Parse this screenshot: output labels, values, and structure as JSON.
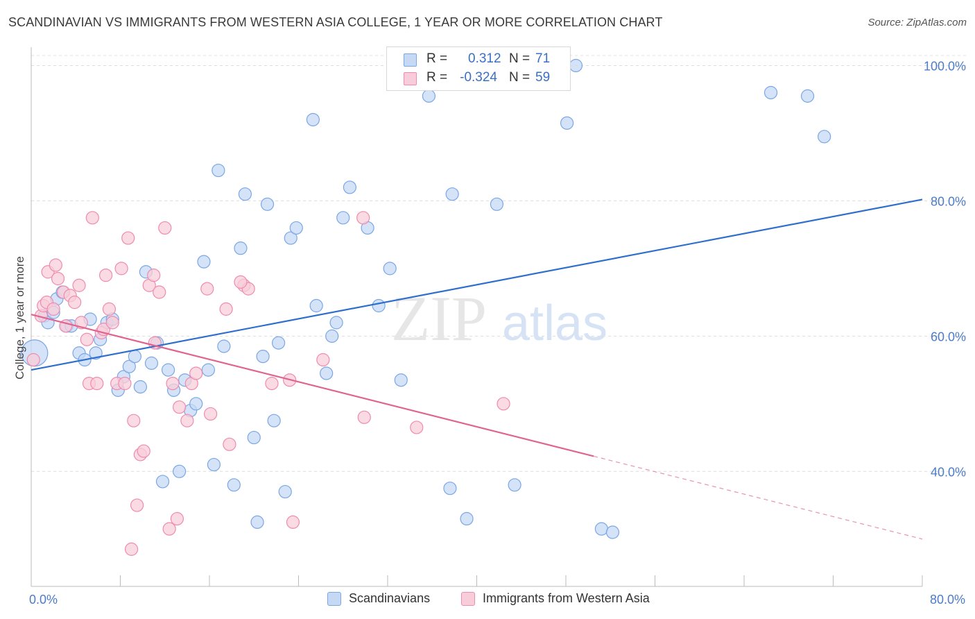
{
  "header": {
    "title": "SCANDINAVIAN VS IMMIGRANTS FROM WESTERN ASIA COLLEGE, 1 YEAR OR MORE CORRELATION CHART",
    "source": "Source: ZipAtlas.com"
  },
  "legend": {
    "r_label": "R =",
    "n_label": "N =",
    "rows": [
      {
        "r": "0.312",
        "n": "71"
      },
      {
        "r": "-0.324",
        "n": "59"
      }
    ]
  },
  "watermark": {
    "zip": "ZIP",
    "atlas": "atlas"
  },
  "chart_data": {
    "type": "scatter",
    "ylabel": "College, 1 year or more",
    "xlabel": "",
    "xlim": [
      0,
      80
    ],
    "ylim": [
      23,
      102
    ],
    "x_tick_labels": [
      {
        "value": 0,
        "label": "0.0%"
      },
      {
        "value": 80,
        "label": "80.0%"
      }
    ],
    "x_minor_ticks": [
      8,
      16,
      24,
      32,
      40,
      48,
      56,
      64,
      72
    ],
    "y_ticks": [
      {
        "value": 40,
        "label": "40.0%"
      },
      {
        "value": 60,
        "label": "60.0%"
      },
      {
        "value": 80,
        "label": "80.0%"
      },
      {
        "value": 100,
        "label": "100.0%"
      }
    ],
    "grid": "horizontal dashed",
    "legend_position": "top-center",
    "series": [
      {
        "name": "Scandinavians",
        "color": "#7aa6e6",
        "fill": "#c5d9f5",
        "line_color": "#2e6fce",
        "trend": {
          "x": [
            0,
            80
          ],
          "y": [
            55.0,
            80.2
          ],
          "dashed_from": null
        },
        "points": [
          [
            0.3,
            57.5
          ],
          [
            1.2,
            63.0
          ],
          [
            1.5,
            62.0
          ],
          [
            2.0,
            63.5
          ],
          [
            2.3,
            65.5
          ],
          [
            2.8,
            66.5
          ],
          [
            3.2,
            61.5
          ],
          [
            3.6,
            61.5
          ],
          [
            4.3,
            57.5
          ],
          [
            4.8,
            56.5
          ],
          [
            5.3,
            62.5
          ],
          [
            5.8,
            57.5
          ],
          [
            6.2,
            59.5
          ],
          [
            6.8,
            62.0
          ],
          [
            7.3,
            62.5
          ],
          [
            7.8,
            52.0
          ],
          [
            8.3,
            54.0
          ],
          [
            8.8,
            55.5
          ],
          [
            9.3,
            57.0
          ],
          [
            9.8,
            52.5
          ],
          [
            10.3,
            69.5
          ],
          [
            10.8,
            56.0
          ],
          [
            11.3,
            59.0
          ],
          [
            11.8,
            38.5
          ],
          [
            12.3,
            55.0
          ],
          [
            12.8,
            52.0
          ],
          [
            13.3,
            40.0
          ],
          [
            13.8,
            53.5
          ],
          [
            14.3,
            49.0
          ],
          [
            14.8,
            50.0
          ],
          [
            15.5,
            71.0
          ],
          [
            15.9,
            55.0
          ],
          [
            16.4,
            41.0
          ],
          [
            16.8,
            84.5
          ],
          [
            17.3,
            58.5
          ],
          [
            18.2,
            38.0
          ],
          [
            18.8,
            73.0
          ],
          [
            19.2,
            81.0
          ],
          [
            20.0,
            45.0
          ],
          [
            20.3,
            32.5
          ],
          [
            20.8,
            57.0
          ],
          [
            21.2,
            79.5
          ],
          [
            21.8,
            47.5
          ],
          [
            22.2,
            59.0
          ],
          [
            22.8,
            37.0
          ],
          [
            23.3,
            74.5
          ],
          [
            23.8,
            76.0
          ],
          [
            25.6,
            64.5
          ],
          [
            25.3,
            92.0
          ],
          [
            26.5,
            54.5
          ],
          [
            27.0,
            60.0
          ],
          [
            27.4,
            62.0
          ],
          [
            28.0,
            77.5
          ],
          [
            28.6,
            82.0
          ],
          [
            30.2,
            76.0
          ],
          [
            31.2,
            64.5
          ],
          [
            32.2,
            70.0
          ],
          [
            33.2,
            53.5
          ],
          [
            35.7,
            95.5
          ],
          [
            37.8,
            81.0
          ],
          [
            37.6,
            37.5
          ],
          [
            39.1,
            33.0
          ],
          [
            41.8,
            79.5
          ],
          [
            43.4,
            38.0
          ],
          [
            48.9,
            100.0
          ],
          [
            48.1,
            91.5
          ],
          [
            51.2,
            31.5
          ],
          [
            52.2,
            31.0
          ],
          [
            66.4,
            96.0
          ],
          [
            69.7,
            95.5
          ],
          [
            71.2,
            89.5
          ]
        ],
        "large_point_index": 0
      },
      {
        "name": "Immigrants from Western Asia",
        "color": "#f08aae",
        "fill": "#f8cdd9",
        "line_color": "#e0648f",
        "trend": {
          "x": [
            0,
            80
          ],
          "y": [
            63.2,
            30.0
          ],
          "dashed_from": 50.5
        },
        "points": [
          [
            0.2,
            56.5
          ],
          [
            0.9,
            63.0
          ],
          [
            1.1,
            64.5
          ],
          [
            1.4,
            65.0
          ],
          [
            1.5,
            69.5
          ],
          [
            2.0,
            64.0
          ],
          [
            2.2,
            70.5
          ],
          [
            2.4,
            68.5
          ],
          [
            2.9,
            66.5
          ],
          [
            3.1,
            61.5
          ],
          [
            3.5,
            66.0
          ],
          [
            3.9,
            65.0
          ],
          [
            4.3,
            67.5
          ],
          [
            4.5,
            62.0
          ],
          [
            5.0,
            59.5
          ],
          [
            5.2,
            53.0
          ],
          [
            5.5,
            77.5
          ],
          [
            5.9,
            53.0
          ],
          [
            6.3,
            60.5
          ],
          [
            6.5,
            61.0
          ],
          [
            6.7,
            69.0
          ],
          [
            7.0,
            64.0
          ],
          [
            7.3,
            62.0
          ],
          [
            7.7,
            53.0
          ],
          [
            8.1,
            70.0
          ],
          [
            8.4,
            53.0
          ],
          [
            8.7,
            74.5
          ],
          [
            9.0,
            28.5
          ],
          [
            9.2,
            47.5
          ],
          [
            9.8,
            42.5
          ],
          [
            10.1,
            43.0
          ],
          [
            10.6,
            67.5
          ],
          [
            11.0,
            69.0
          ],
          [
            11.5,
            66.5
          ],
          [
            11.1,
            59.0
          ],
          [
            12.0,
            76.0
          ],
          [
            12.4,
            31.5
          ],
          [
            12.7,
            53.0
          ],
          [
            13.1,
            33.0
          ],
          [
            13.3,
            49.5
          ],
          [
            14.0,
            47.5
          ],
          [
            14.4,
            53.0
          ],
          [
            14.8,
            54.5
          ],
          [
            15.8,
            67.0
          ],
          [
            16.1,
            48.5
          ],
          [
            17.5,
            64.0
          ],
          [
            17.8,
            44.0
          ],
          [
            19.1,
            67.5
          ],
          [
            19.5,
            67.0
          ],
          [
            21.6,
            53.0
          ],
          [
            23.2,
            53.5
          ],
          [
            23.5,
            32.5
          ],
          [
            26.2,
            56.5
          ],
          [
            29.8,
            77.5
          ],
          [
            29.9,
            48.0
          ],
          [
            34.6,
            46.5
          ],
          [
            42.4,
            50.0
          ],
          [
            18.8,
            68.0
          ],
          [
            9.5,
            35.0
          ]
        ]
      }
    ]
  },
  "bottom_legend": {
    "items": [
      {
        "label": "Scandinavians"
      },
      {
        "label": "Immigrants from Western Asia"
      }
    ]
  }
}
